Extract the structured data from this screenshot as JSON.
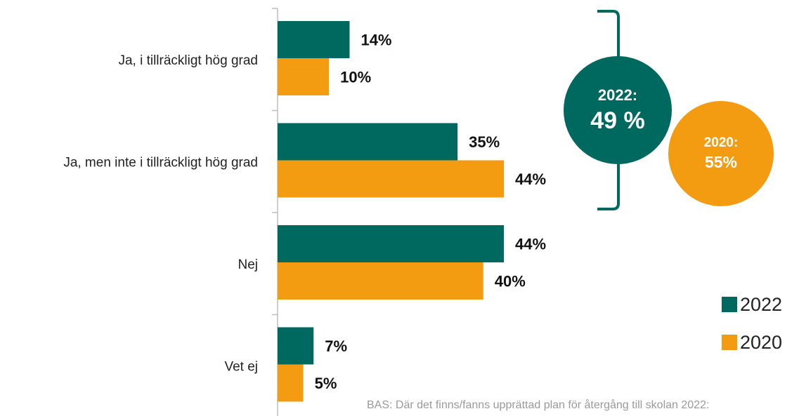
{
  "chart_data": {
    "type": "bar",
    "orientation": "horizontal",
    "categories": [
      "Ja, i tillräckligt hög grad",
      "Ja, men inte i tillräckligt hög grad",
      "Nej",
      "Vet ej"
    ],
    "series": [
      {
        "name": "2022",
        "color": "#00695F",
        "values": [
          14,
          35,
          44,
          7
        ]
      },
      {
        "name": "2020",
        "color": "#F39C12",
        "values": [
          10,
          44,
          40,
          5
        ]
      }
    ],
    "value_labels": {
      "2022": [
        "14%",
        "35%",
        "44%",
        "7%"
      ],
      "2020": [
        "10%",
        "44%",
        "40%",
        "5%"
      ]
    },
    "xlim": [
      0,
      44
    ],
    "grid": false,
    "legend_position": "bottom-right"
  },
  "callout": {
    "y2022": {
      "label": "2022:",
      "value": "49 %",
      "color": "#00695F"
    },
    "y2020": {
      "label": "2020:",
      "value": "55%",
      "color": "#F39C12"
    },
    "bracket_color": "#00695F"
  },
  "legend": [
    {
      "label": "2022",
      "color": "#00695F"
    },
    {
      "label": "2020",
      "color": "#F39C12"
    }
  ],
  "footnote": "BAS: Där det finns/fanns upprättad plan för återgång till skolan 2022:"
}
